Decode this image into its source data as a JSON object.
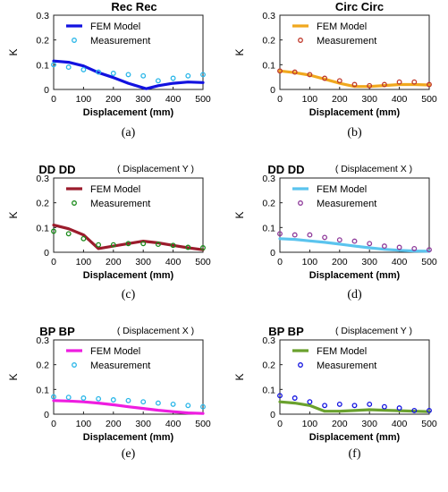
{
  "figure": {
    "captions": [
      "(a)",
      "(b)",
      "(c)",
      "(d)",
      "(e)",
      "(f)"
    ]
  },
  "chart_data": [
    {
      "type": "line",
      "title": "Rec Rec",
      "note": "",
      "xlabel": "Displacement (mm)",
      "ylabel": "K",
      "xlim": [
        0,
        500
      ],
      "ylim": [
        0,
        0.3
      ],
      "xticks": [
        0,
        100,
        200,
        300,
        400,
        500
      ],
      "yticks": [
        0,
        0.1,
        0.2,
        0.3
      ],
      "grid": false,
      "legend_position": "top-left",
      "series": [
        {
          "name": "FEM Model",
          "kind": "line",
          "color": "#1212e0",
          "x": [
            0,
            50,
            100,
            150,
            200,
            250,
            310,
            350,
            400,
            450,
            500
          ],
          "y": [
            0.115,
            0.11,
            0.095,
            0.068,
            0.048,
            0.025,
            0.003,
            0.015,
            0.025,
            0.03,
            0.028
          ]
        },
        {
          "name": "Measurement",
          "kind": "scatter",
          "color": "#29b6e8",
          "x": [
            0,
            50,
            100,
            150,
            200,
            250,
            300,
            350,
            400,
            450,
            500
          ],
          "y": [
            0.1,
            0.09,
            0.08,
            0.07,
            0.065,
            0.06,
            0.055,
            0.035,
            0.045,
            0.055,
            0.06
          ]
        }
      ]
    },
    {
      "type": "line",
      "title": "Circ Circ",
      "note": "",
      "xlabel": "Displacement (mm)",
      "ylabel": "K",
      "xlim": [
        0,
        500
      ],
      "ylim": [
        0,
        0.3
      ],
      "xticks": [
        0,
        100,
        200,
        300,
        400,
        500
      ],
      "yticks": [
        0,
        0.1,
        0.2,
        0.3
      ],
      "grid": false,
      "legend_position": "top-left",
      "series": [
        {
          "name": "FEM Model",
          "kind": "line",
          "color": "#f0a81e",
          "x": [
            0,
            50,
            100,
            150,
            200,
            250,
            300,
            350,
            400,
            450,
            500
          ],
          "y": [
            0.075,
            0.068,
            0.058,
            0.042,
            0.025,
            0.012,
            0.012,
            0.016,
            0.02,
            0.02,
            0.018
          ]
        },
        {
          "name": "Measurement",
          "kind": "scatter",
          "color": "#c0392b",
          "x": [
            0,
            50,
            100,
            150,
            200,
            250,
            300,
            350,
            400,
            450,
            500
          ],
          "y": [
            0.075,
            0.07,
            0.06,
            0.045,
            0.035,
            0.02,
            0.015,
            0.02,
            0.03,
            0.03,
            0.02
          ]
        }
      ]
    },
    {
      "type": "line",
      "title": "DD DD",
      "note": "( Displacement Y )",
      "xlabel": "Displacement (mm)",
      "ylabel": "K",
      "xlim": [
        0,
        500
      ],
      "ylim": [
        0,
        0.3
      ],
      "xticks": [
        0,
        100,
        200,
        300,
        400,
        500
      ],
      "yticks": [
        0,
        0.1,
        0.2,
        0.3
      ],
      "grid": false,
      "legend_position": "top-left",
      "series": [
        {
          "name": "FEM Model",
          "kind": "line",
          "color": "#9b1c2c",
          "x": [
            0,
            50,
            100,
            150,
            200,
            250,
            300,
            350,
            400,
            450,
            500
          ],
          "y": [
            0.11,
            0.095,
            0.07,
            0.015,
            0.025,
            0.035,
            0.045,
            0.038,
            0.028,
            0.018,
            0.01
          ]
        },
        {
          "name": "Measurement",
          "kind": "scatter",
          "color": "#1a8a1a",
          "x": [
            0,
            50,
            100,
            150,
            200,
            250,
            300,
            350,
            400,
            450,
            500
          ],
          "y": [
            0.085,
            0.075,
            0.055,
            0.03,
            0.03,
            0.035,
            0.035,
            0.032,
            0.028,
            0.02,
            0.018
          ]
        }
      ]
    },
    {
      "type": "line",
      "title": "DD DD",
      "note": "( Displacement X )",
      "xlabel": "Displacement (mm)",
      "ylabel": "K",
      "xlim": [
        0,
        500
      ],
      "ylim": [
        0,
        0.3
      ],
      "xticks": [
        0,
        100,
        200,
        300,
        400,
        500
      ],
      "yticks": [
        0,
        0.1,
        0.2,
        0.3
      ],
      "grid": false,
      "legend_position": "top-left",
      "series": [
        {
          "name": "FEM Model",
          "kind": "line",
          "color": "#5bc4ee",
          "x": [
            0,
            50,
            100,
            150,
            200,
            250,
            300,
            350,
            400,
            450,
            500
          ],
          "y": [
            0.055,
            0.052,
            0.046,
            0.04,
            0.033,
            0.025,
            0.018,
            0.012,
            0.008,
            0.005,
            0.004
          ]
        },
        {
          "name": "Measurement",
          "kind": "scatter",
          "color": "#8e3a9a",
          "x": [
            0,
            50,
            100,
            150,
            200,
            250,
            300,
            350,
            400,
            450,
            500
          ],
          "y": [
            0.075,
            0.07,
            0.07,
            0.06,
            0.05,
            0.045,
            0.035,
            0.025,
            0.02,
            0.015,
            0.01
          ]
        }
      ]
    },
    {
      "type": "line",
      "title": "BP BP",
      "note": "( Displacement X )",
      "xlabel": "Displacement (mm)",
      "ylabel": "K",
      "xlim": [
        0,
        500
      ],
      "ylim": [
        0,
        0.3
      ],
      "xticks": [
        0,
        100,
        200,
        300,
        400,
        500
      ],
      "yticks": [
        0,
        0.1,
        0.2,
        0.3
      ],
      "grid": false,
      "legend_position": "top-left",
      "series": [
        {
          "name": "FEM Model",
          "kind": "line",
          "color": "#ee1de0",
          "x": [
            0,
            50,
            100,
            150,
            200,
            250,
            300,
            350,
            400,
            450,
            500
          ],
          "y": [
            0.055,
            0.053,
            0.05,
            0.045,
            0.038,
            0.03,
            0.023,
            0.016,
            0.01,
            0.005,
            0.003
          ]
        },
        {
          "name": "Measurement",
          "kind": "scatter",
          "color": "#29b6e8",
          "x": [
            0,
            50,
            100,
            150,
            200,
            250,
            300,
            350,
            400,
            450,
            500
          ],
          "y": [
            0.07,
            0.068,
            0.065,
            0.062,
            0.058,
            0.055,
            0.05,
            0.045,
            0.04,
            0.035,
            0.03
          ]
        }
      ]
    },
    {
      "type": "line",
      "title": "BP BP",
      "note": "( Displacement Y )",
      "xlabel": "Displacement (mm)",
      "ylabel": "K",
      "xlim": [
        0,
        500
      ],
      "ylim": [
        0,
        0.3
      ],
      "xticks": [
        0,
        100,
        200,
        300,
        400,
        500
      ],
      "yticks": [
        0,
        0.1,
        0.2,
        0.3
      ],
      "grid": false,
      "legend_position": "top-left",
      "series": [
        {
          "name": "FEM Model",
          "kind": "line",
          "color": "#6aa12e",
          "x": [
            0,
            50,
            100,
            150,
            200,
            250,
            300,
            350,
            400,
            450,
            500
          ],
          "y": [
            0.05,
            0.045,
            0.035,
            0.012,
            0.012,
            0.015,
            0.018,
            0.016,
            0.014,
            0.012,
            0.01
          ]
        },
        {
          "name": "Measurement",
          "kind": "scatter",
          "color": "#1212e0",
          "x": [
            0,
            50,
            100,
            150,
            200,
            250,
            300,
            350,
            400,
            450,
            500
          ],
          "y": [
            0.075,
            0.065,
            0.05,
            0.035,
            0.04,
            0.035,
            0.04,
            0.03,
            0.025,
            0.015,
            0.015
          ]
        }
      ]
    }
  ]
}
